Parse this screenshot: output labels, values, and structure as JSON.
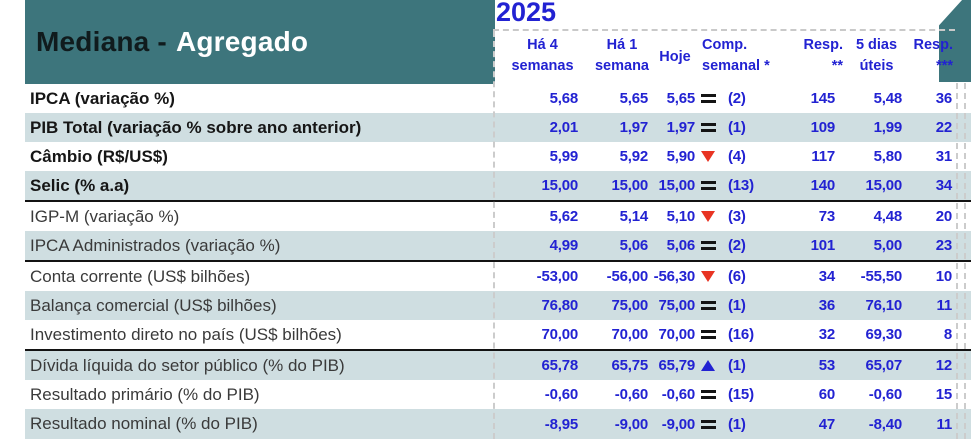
{
  "report": {
    "title": {
      "black": "Mediana -",
      "white": "Agregado"
    },
    "year": "2025"
  },
  "columns": {
    "h4s": {
      "l1": "Há 4",
      "l2": "semanas"
    },
    "h1s": {
      "l1": "Há 1",
      "l2": "semana"
    },
    "hoje": {
      "l1": "Hoje"
    },
    "comp": {
      "l1": "Comp.",
      "l2": "semanal *"
    },
    "resp2": {
      "l1": "Resp.",
      "l2": "**"
    },
    "dias5": {
      "l1": "5 dias",
      "l2": "úteis"
    },
    "resp3": {
      "l1": "Resp.",
      "l2": "***"
    }
  },
  "icons": {
    "comparison_equal": "equal-icon",
    "comparison_down": "arrow-down-icon",
    "comparison_up": "arrow-up-icon"
  },
  "colors": {
    "teal": "#3d757c",
    "value_blue": "#2222d2",
    "arrow_red": "#e83423",
    "stripe": "#cfdee1"
  },
  "table": {
    "rows": [
      {
        "label": "IPCA (variação %)",
        "bold": true,
        "v4w": "5,68",
        "v1w": "5,65",
        "today": "5,65",
        "dir": "eq",
        "n": "(2)",
        "resp": "145",
        "d5": "5,48",
        "resp3": "36",
        "sep_after": false
      },
      {
        "label": "PIB Total (variação % sobre ano anterior)",
        "bold": true,
        "v4w": "2,01",
        "v1w": "1,97",
        "today": "1,97",
        "dir": "eq",
        "n": "(1)",
        "resp": "109",
        "d5": "1,99",
        "resp3": "22",
        "sep_after": false
      },
      {
        "label": "Câmbio (R$/US$)",
        "bold": true,
        "v4w": "5,99",
        "v1w": "5,92",
        "today": "5,90",
        "dir": "down",
        "n": "(4)",
        "resp": "117",
        "d5": "5,80",
        "resp3": "31",
        "sep_after": false
      },
      {
        "label": "Selic (% a.a)",
        "bold": true,
        "v4w": "15,00",
        "v1w": "15,00",
        "today": "15,00",
        "dir": "eq",
        "n": "(13)",
        "resp": "140",
        "d5": "15,00",
        "resp3": "34",
        "sep_after": true
      },
      {
        "label": "IGP-M (variação %)",
        "bold": false,
        "v4w": "5,62",
        "v1w": "5,14",
        "today": "5,10",
        "dir": "down",
        "n": "(3)",
        "resp": "73",
        "d5": "4,48",
        "resp3": "20",
        "sep_after": false
      },
      {
        "label": "IPCA Administrados (variação %)",
        "bold": false,
        "v4w": "4,99",
        "v1w": "5,06",
        "today": "5,06",
        "dir": "eq",
        "n": "(2)",
        "resp": "101",
        "d5": "5,00",
        "resp3": "23",
        "sep_after": true
      },
      {
        "label": "Conta corrente (US$ bilhões)",
        "bold": false,
        "v4w": "-53,00",
        "v1w": "-56,00",
        "today": "-56,30",
        "dir": "down",
        "n": "(6)",
        "resp": "34",
        "d5": "-55,50",
        "resp3": "10",
        "sep_after": false
      },
      {
        "label": "Balança comercial (US$ bilhões)",
        "bold": false,
        "v4w": "76,80",
        "v1w": "75,00",
        "today": "75,00",
        "dir": "eq",
        "n": "(1)",
        "resp": "36",
        "d5": "76,10",
        "resp3": "11",
        "sep_after": false
      },
      {
        "label": "Investimento direto no país (US$ bilhões)",
        "bold": false,
        "v4w": "70,00",
        "v1w": "70,00",
        "today": "70,00",
        "dir": "eq",
        "n": "(16)",
        "resp": "32",
        "d5": "69,30",
        "resp3": "8",
        "sep_after": true
      },
      {
        "label": "Dívida líquida do setor público (% do PIB)",
        "bold": false,
        "v4w": "65,78",
        "v1w": "65,75",
        "today": "65,79",
        "dir": "up",
        "n": "(1)",
        "resp": "53",
        "d5": "65,07",
        "resp3": "12",
        "sep_after": false
      },
      {
        "label": "Resultado primário (% do PIB)",
        "bold": false,
        "v4w": "-0,60",
        "v1w": "-0,60",
        "today": "-0,60",
        "dir": "eq",
        "n": "(15)",
        "resp": "60",
        "d5": "-0,60",
        "resp3": "15",
        "sep_after": false
      },
      {
        "label": "Resultado nominal (% do PIB)",
        "bold": false,
        "v4w": "-8,95",
        "v1w": "-9,00",
        "today": "-9,00",
        "dir": "eq",
        "n": "(1)",
        "resp": "47",
        "d5": "-8,40",
        "resp3": "11",
        "sep_after": false
      }
    ]
  }
}
